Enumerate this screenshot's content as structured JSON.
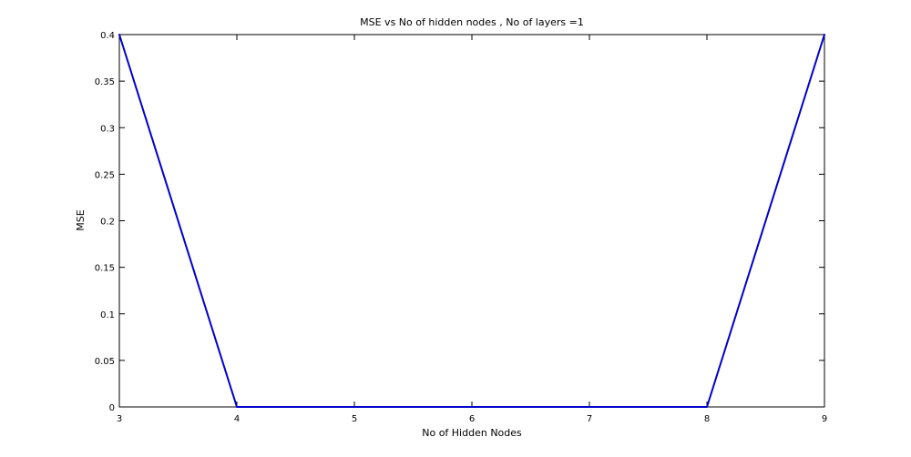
{
  "chart_data": {
    "type": "line",
    "title": "MSE vs No of hidden nodes , No of layers =1",
    "xlabel": "No of Hidden Nodes",
    "ylabel": "MSE",
    "xlim": [
      3,
      9
    ],
    "ylim": [
      0,
      0.4
    ],
    "x_ticks": [
      "3",
      "4",
      "5",
      "6",
      "7",
      "8",
      "9"
    ],
    "y_ticks": [
      "0",
      "0.05",
      "0.1",
      "0.15",
      "0.2",
      "0.25",
      "0.3",
      "0.35",
      "0.4"
    ],
    "grid": false,
    "series": [
      {
        "color": "#0000cc",
        "points": [
          {
            "x": 3,
            "y": 0.4
          },
          {
            "x": 4,
            "y": 0
          },
          {
            "x": 5,
            "y": 0
          },
          {
            "x": 6,
            "y": 0
          },
          {
            "x": 7,
            "y": 0
          },
          {
            "x": 8,
            "y": 0
          },
          {
            "x": 9,
            "y": 0.4
          }
        ]
      }
    ]
  }
}
